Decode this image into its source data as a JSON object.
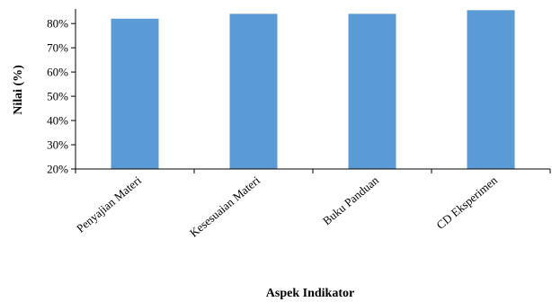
{
  "chart_data": {
    "type": "bar",
    "categories": [
      "Penyajian Materi",
      "Kesesuaian Materi",
      "Buku Panduan",
      "CD Eksperimen"
    ],
    "values": [
      82,
      84,
      84,
      85.5
    ],
    "title": "",
    "xlabel": "Aspek Indikator",
    "ylabel": "Nilai (%)",
    "ylim": [
      20,
      86
    ],
    "yticks": [
      20,
      30,
      40,
      50,
      60,
      70,
      80
    ],
    "ytick_labels": [
      "20%",
      "30%",
      "40%",
      "50%",
      "60%",
      "70%",
      "80%"
    ],
    "bar_color": "#5b9bd5",
    "grid": false,
    "legend": "none"
  }
}
